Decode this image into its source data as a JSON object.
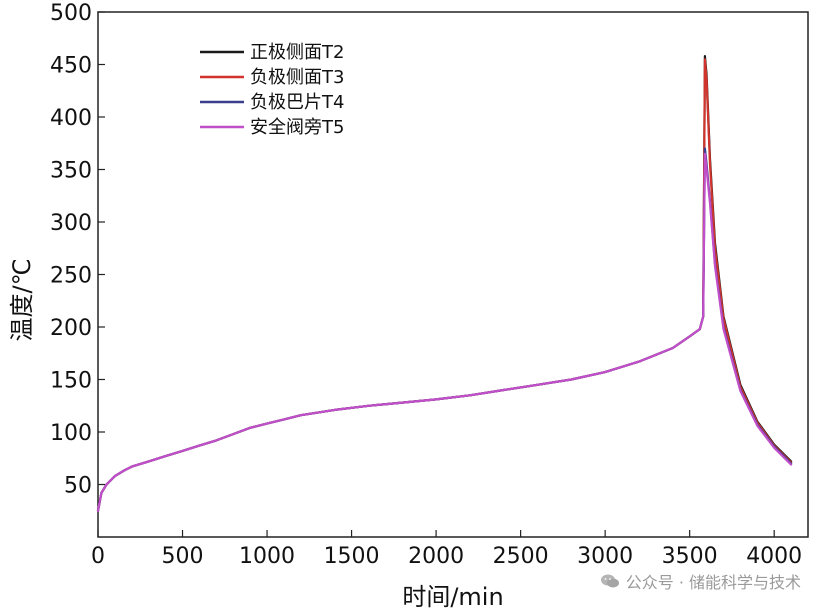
{
  "chart_data": {
    "type": "line",
    "xlabel": "时间/min",
    "ylabel": "温度/℃",
    "xlim": [
      0,
      4200
    ],
    "ylim": [
      0,
      500
    ],
    "xticks": [
      0,
      500,
      1000,
      1500,
      2000,
      2500,
      3000,
      3500,
      4000
    ],
    "yticks": [
      50,
      100,
      150,
      200,
      250,
      300,
      350,
      400,
      450,
      500
    ],
    "grid": false,
    "legend_position": "top-left",
    "series": [
      {
        "name": "正极侧面T2",
        "color": "#1a1a1a",
        "x": [
          0,
          20,
          50,
          100,
          150,
          200,
          300,
          400,
          500,
          600,
          700,
          800,
          900,
          1000,
          1100,
          1200,
          1400,
          1600,
          1800,
          2000,
          2200,
          2400,
          2600,
          2800,
          3000,
          3200,
          3400,
          3500,
          3560,
          3580,
          3590,
          3600,
          3620,
          3650,
          3700,
          3800,
          3900,
          4000,
          4100
        ],
        "values": [
          25,
          42,
          50,
          58,
          63,
          67,
          72,
          77,
          82,
          87,
          92,
          98,
          104,
          108,
          112,
          116,
          121,
          125,
          128,
          131,
          135,
          140,
          145,
          150,
          157,
          167,
          180,
          191,
          198,
          210,
          458,
          440,
          360,
          280,
          210,
          145,
          110,
          88,
          72
        ]
      },
      {
        "name": "负极侧面T3",
        "color": "#d0342c",
        "x": [
          0,
          20,
          50,
          100,
          150,
          200,
          300,
          400,
          500,
          600,
          700,
          800,
          900,
          1000,
          1100,
          1200,
          1400,
          1600,
          1800,
          2000,
          2200,
          2400,
          2600,
          2800,
          3000,
          3200,
          3400,
          3500,
          3560,
          3580,
          3590,
          3600,
          3620,
          3650,
          3700,
          3800,
          3900,
          4000,
          4100
        ],
        "values": [
          25,
          42,
          50,
          58,
          63,
          67,
          72,
          77,
          82,
          87,
          92,
          98,
          104,
          108,
          112,
          116,
          121,
          125,
          128,
          131,
          135,
          140,
          145,
          150,
          157,
          167,
          180,
          191,
          198,
          210,
          455,
          435,
          355,
          275,
          208,
          143,
          109,
          87,
          71
        ]
      },
      {
        "name": "负极巴片T4",
        "color": "#3a3f8f",
        "x": [
          0,
          20,
          50,
          100,
          150,
          200,
          300,
          400,
          500,
          600,
          700,
          800,
          900,
          1000,
          1100,
          1200,
          1400,
          1600,
          1800,
          2000,
          2200,
          2400,
          2600,
          2800,
          3000,
          3200,
          3400,
          3500,
          3560,
          3580,
          3590,
          3600,
          3620,
          3650,
          3700,
          3800,
          3900,
          4000,
          4100
        ],
        "values": [
          25,
          42,
          50,
          58,
          63,
          67,
          72,
          77,
          82,
          87,
          92,
          98,
          104,
          108,
          112,
          116,
          121,
          125,
          128,
          131,
          135,
          140,
          145,
          150,
          157,
          167,
          180,
          191,
          198,
          210,
          370,
          355,
          320,
          260,
          200,
          140,
          107,
          86,
          70
        ]
      },
      {
        "name": "安全阀旁T5",
        "color": "#c04fc9",
        "x": [
          0,
          20,
          50,
          100,
          150,
          200,
          300,
          400,
          500,
          600,
          700,
          800,
          900,
          1000,
          1100,
          1200,
          1400,
          1600,
          1800,
          2000,
          2200,
          2400,
          2600,
          2800,
          3000,
          3200,
          3400,
          3500,
          3560,
          3580,
          3590,
          3600,
          3620,
          3650,
          3700,
          3800,
          3900,
          4000,
          4100
        ],
        "values": [
          25,
          42,
          50,
          58,
          63,
          67,
          72,
          77,
          82,
          87,
          92,
          98,
          104,
          108,
          112,
          116,
          121,
          125,
          128,
          131,
          135,
          140,
          145,
          150,
          157,
          167,
          180,
          191,
          198,
          210,
          365,
          350,
          318,
          258,
          198,
          139,
          106,
          85,
          69
        ]
      }
    ]
  },
  "watermark": {
    "text": "公众号 · 储能科学与技术",
    "icon": "wechat-icon"
  }
}
